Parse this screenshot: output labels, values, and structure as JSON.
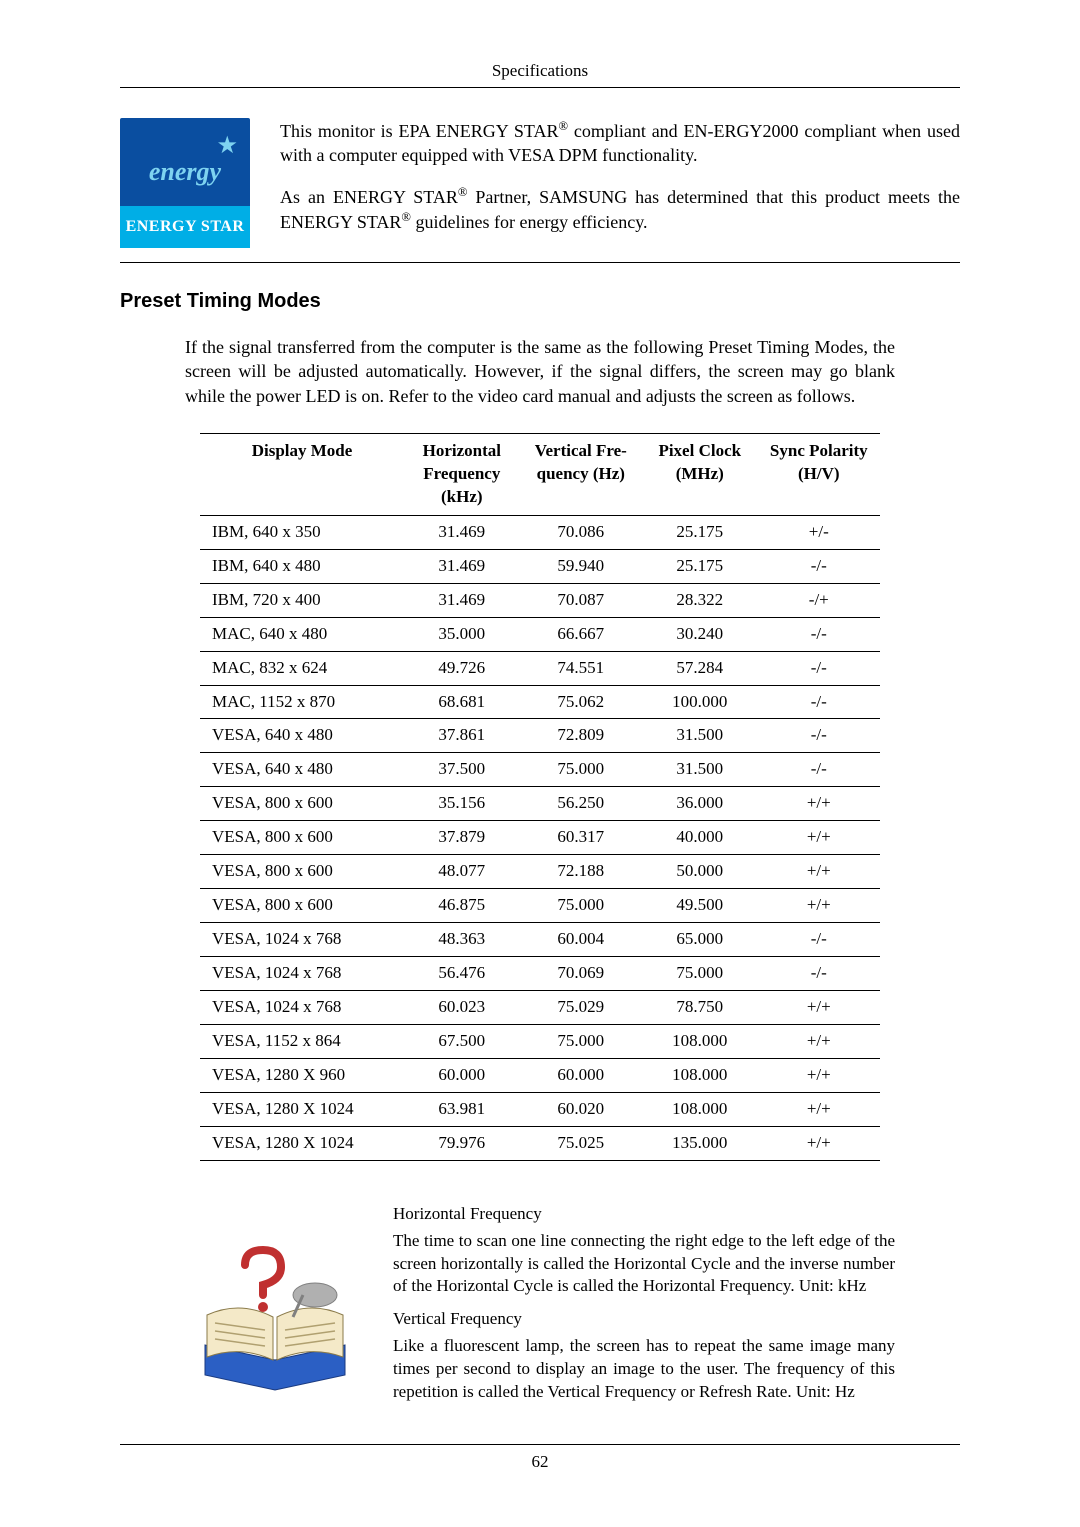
{
  "header": {
    "title": "Specifications"
  },
  "energy_logo": {
    "script": "energy",
    "bar": "ENERGY STAR"
  },
  "intro": {
    "p1_a": "This monitor is EPA ENERGY STAR",
    "p1_b": " compliant and EN-ERGY2000 compliant when used with a computer equipped with VESA DPM functionality.",
    "p2_a": "As an ENERGY STAR",
    "p2_b": " Partner, SAMSUNG has determined that this product meets the ENERGY STAR",
    "p2_c": " guidelines for energy efficiency.",
    "reg": "®"
  },
  "section": {
    "title": "Preset Timing Modes"
  },
  "para": "If the signal transferred from the computer is the same as the following Preset Timing Modes, the screen will be adjusted automatically. However, if the signal differs, the screen may go blank while the power LED is on. Refer to the video card manual and adjusts the screen as follows.",
  "table": {
    "headers": [
      "Display Mode",
      "Horizontal Frequency (kHz)",
      "Vertical Fre-quency (Hz)",
      "Pixel Clock (MHz)",
      "Sync Polarity (H/V)"
    ],
    "col_widths": [
      "30%",
      "17%",
      "18%",
      "17%",
      "18%"
    ],
    "rows": [
      [
        "IBM, 640 x 350",
        "31.469",
        "70.086",
        "25.175",
        "+/-"
      ],
      [
        "IBM, 640 x 480",
        "31.469",
        "59.940",
        "25.175",
        "-/-"
      ],
      [
        "IBM, 720 x 400",
        "31.469",
        "70.087",
        "28.322",
        "-/+"
      ],
      [
        "MAC, 640 x 480",
        "35.000",
        "66.667",
        "30.240",
        "-/-"
      ],
      [
        "MAC, 832 x 624",
        "49.726",
        "74.551",
        "57.284",
        "-/-"
      ],
      [
        "MAC, 1152 x 870",
        "68.681",
        "75.062",
        "100.000",
        "-/-"
      ],
      [
        "VESA, 640 x 480",
        "37.861",
        "72.809",
        "31.500",
        "-/-"
      ],
      [
        "VESA, 640 x 480",
        "37.500",
        "75.000",
        "31.500",
        "-/-"
      ],
      [
        "VESA, 800 x 600",
        "35.156",
        "56.250",
        "36.000",
        "+/+"
      ],
      [
        "VESA, 800 x 600",
        "37.879",
        "60.317",
        "40.000",
        "+/+"
      ],
      [
        "VESA, 800 x 600",
        "48.077",
        "72.188",
        "50.000",
        "+/+"
      ],
      [
        "VESA, 800 x 600",
        "46.875",
        "75.000",
        "49.500",
        "+/+"
      ],
      [
        "VESA, 1024 x 768",
        "48.363",
        "60.004",
        "65.000",
        "-/-"
      ],
      [
        "VESA, 1024 x 768",
        "56.476",
        "70.069",
        "75.000",
        "-/-"
      ],
      [
        "VESA, 1024 x 768",
        "60.023",
        "75.029",
        "78.750",
        "+/+"
      ],
      [
        "VESA, 1152 x 864",
        "67.500",
        "75.000",
        "108.000",
        "+/+"
      ],
      [
        "VESA, 1280 X 960",
        "60.000",
        "60.000",
        "108.000",
        "+/+"
      ],
      [
        "VESA, 1280 X 1024",
        "63.981",
        "60.020",
        "108.000",
        "+/+"
      ],
      [
        "VESA, 1280 X 1024",
        "79.976",
        "75.025",
        "135.000",
        "+/+"
      ]
    ]
  },
  "defs": {
    "h_title": "Horizontal Frequency",
    "h_body": "The time to scan one line connecting the right edge to the left edge of the screen horizontally is called the Horizontal Cycle and the inverse number of the Horizontal Cycle is called the Horizontal Frequency. Unit: kHz",
    "v_title": "Vertical Frequency",
    "v_body": "Like a fluorescent lamp, the screen has to repeat the same image many times per second to display an image to the user. The frequency of this repetition is called the Vertical Frequency or Refresh Rate. Unit: Hz"
  },
  "footer": {
    "page": "62"
  },
  "colors": {
    "logo_top": "#0a4ea0",
    "logo_bottom": "#00aee6",
    "logo_text": "#7ed3f0",
    "icon_blue": "#2b5fc4",
    "icon_cream": "#f4e9c8",
    "icon_red": "#c03030",
    "icon_grey": "#b0b0b0"
  }
}
